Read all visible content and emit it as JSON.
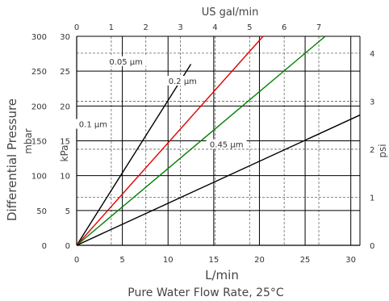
{
  "chart_data": {
    "type": "line",
    "title": "",
    "xlabel": "L/min",
    "xlabel_caption": "Pure Water Flow Rate, 25°C",
    "x2label": "US gal/min",
    "ylabel": "Differential Pressure",
    "ylabel_units": [
      "mbar",
      "kPa",
      "psi"
    ],
    "xlim": [
      0,
      31
    ],
    "ylim_kpa": [
      0,
      30
    ],
    "xticks": [
      0,
      5,
      10,
      15,
      20,
      25,
      30
    ],
    "x2ticks": [
      0,
      1,
      2,
      3,
      4,
      5,
      6,
      7
    ],
    "yticks_kpa": [
      0,
      5,
      10,
      15,
      20,
      25,
      30
    ],
    "yticks_mbar": [
      0,
      50,
      100,
      150,
      200,
      250,
      300
    ],
    "yticks_psi": [
      0,
      1,
      2,
      3,
      4
    ],
    "grid": true,
    "series": [
      {
        "name": "0.05 µm",
        "color": "#000000",
        "x": [
          0,
          12.5
        ],
        "y": [
          0,
          26
        ]
      },
      {
        "name": "0.1 µm",
        "color": "#e00000",
        "x": [
          0,
          20.4
        ],
        "y": [
          0,
          30
        ]
      },
      {
        "name": "0.2 µm",
        "color": "#008000",
        "x": [
          0,
          27.2
        ],
        "y": [
          0,
          30
        ]
      },
      {
        "name": "0.45 µm",
        "color": "#000000",
        "x": [
          0,
          31
        ],
        "y": [
          0,
          18.7
        ]
      }
    ]
  }
}
